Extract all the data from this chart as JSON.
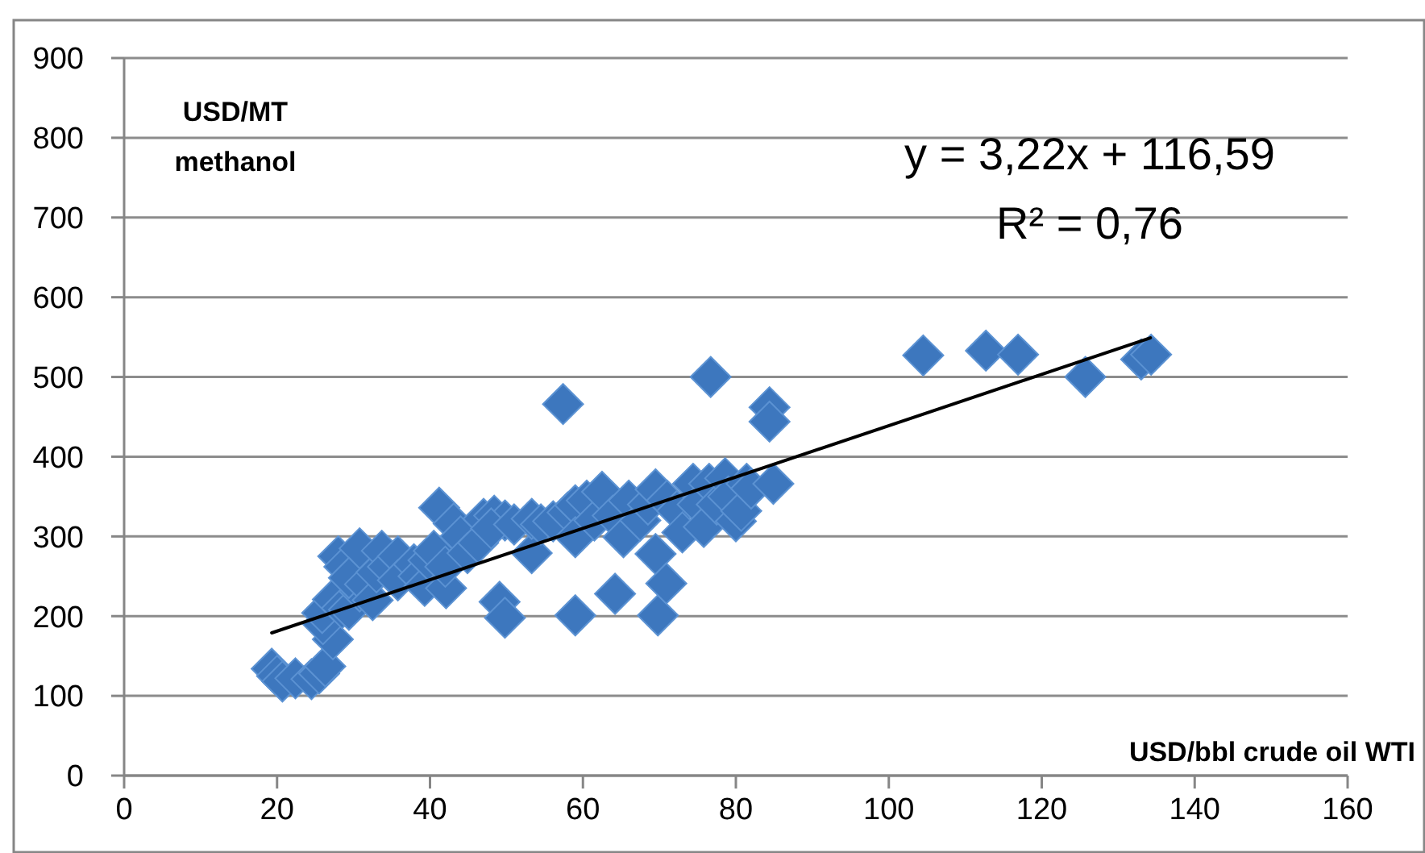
{
  "chart_data": {
    "type": "scatter",
    "xlabel": "USD/bbl crude oil WTI",
    "ylabel": "USD/MT methanol",
    "annotations": [
      "y = 3,22x + 116,59",
      "R² = 0,76"
    ],
    "xlim": [
      0,
      160
    ],
    "xticks": [
      0,
      20,
      40,
      60,
      80,
      100,
      120,
      140,
      160
    ],
    "ylim": [
      0,
      900
    ],
    "yticks": [
      0,
      100,
      200,
      300,
      400,
      500,
      600,
      700,
      800,
      900
    ],
    "grid": "y",
    "series": [
      {
        "color": "#3d77be",
        "marker": "diamond",
        "x": [
          19.3,
          20.0,
          20.7,
          22.4,
          24.5,
          25.5,
          26.3,
          27.3,
          26.0,
          25.9,
          27.3,
          28.5,
          29.4,
          30.8,
          28.0,
          28.8,
          30.8,
          29.4,
          31.5,
          32.5,
          33.0,
          33.7,
          34.5,
          35.8,
          35.8,
          37.9,
          38.5,
          39.3,
          39.8,
          40.5,
          41.2,
          42.1,
          42.0,
          43.1,
          44.0,
          44.9,
          46.3,
          47.0,
          48.4,
          49.8,
          48.0,
          49.1,
          49.8,
          51.0,
          53.3,
          53.3,
          54.5,
          56.1,
          57.4,
          58.0,
          59.0,
          59.0,
          59.0,
          60.5,
          61.5,
          62.5,
          63.9,
          64.2,
          65.3,
          66.0,
          67.5,
          68.5,
          69.5,
          69.5,
          69.8,
          70.9,
          71.0,
          72.3,
          73.0,
          74.4,
          75.0,
          75.8,
          76.5,
          76.7,
          77.5,
          78.6,
          79.0,
          80.0,
          80.7,
          81.4,
          82.0,
          84.4,
          84.4,
          84.9,
          104.5,
          112.7,
          116.9,
          125.7,
          133.0,
          134.3
        ],
        "values": [
          134,
          125,
          118,
          122,
          121,
          128,
          137,
          171,
          190,
          204,
          221,
          210,
          208,
          231,
          275,
          262,
          285,
          248,
          240,
          220,
          255,
          282,
          262,
          275,
          245,
          265,
          250,
          238,
          270,
          282,
          336,
          235,
          262,
          316,
          300,
          279,
          292,
          322,
          326,
          320,
          310,
          218,
          198,
          315,
          279,
          322,
          315,
          319,
          466,
          330,
          339,
          299,
          201,
          345,
          320,
          356,
          326,
          228,
          299,
          345,
          320,
          340,
          359,
          278,
          201,
          241,
          345,
          332,
          305,
          366,
          340,
          312,
          366,
          500,
          340,
          373,
          350,
          319,
          332,
          366,
          360,
          462,
          444,
          366,
          527,
          533,
          528,
          500,
          522,
          528
        ]
      },
      {
        "type": "line",
        "color": "#000000",
        "x": [
          19.3,
          134.2
        ],
        "values": [
          179,
          549
        ]
      }
    ]
  }
}
